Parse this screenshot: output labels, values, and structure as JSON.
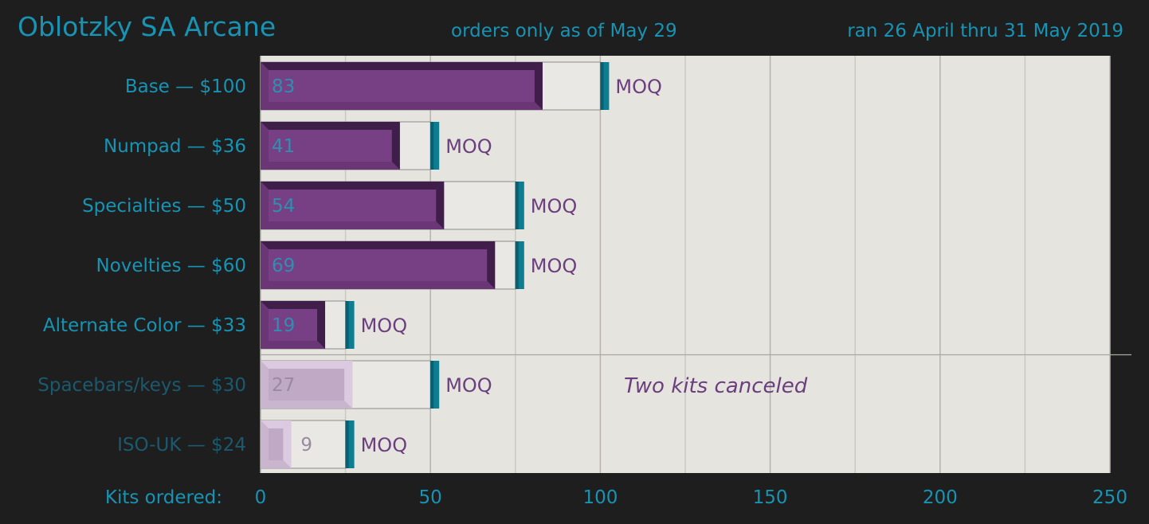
{
  "header": {
    "title": "Oblotzky SA Arcane",
    "subtitle": "orders only as of May 29",
    "date_range": "ran 26 April thru 31 May 2019"
  },
  "colors": {
    "background": "#1e1e1e",
    "plot_bg": "#e6e4df",
    "accent_text": "#1793b4",
    "dim_text": "#1b5a6e",
    "bar_active": "#773f84",
    "bar_active_dark": "#3f1e4a",
    "bar_canceled": "#bfa9c4",
    "bar_canceled_light": "#dccbe0",
    "moq_marker": "#0d7d92",
    "moq_text": "#6b3f7d",
    "annotation": "#6b3f7d"
  },
  "chart_data": {
    "type": "bar",
    "orientation": "horizontal",
    "categories": [
      "Base — $100",
      "Numpad — $36",
      "Specialties — $50",
      "Novelties — $60",
      "Alternate Color — $33",
      "Spacebars/keys — $30",
      "ISO-UK — $24"
    ],
    "values": [
      83,
      41,
      54,
      69,
      19,
      27,
      9
    ],
    "value_labels": [
      "83",
      "41",
      "54",
      "69",
      "19",
      "27",
      "9"
    ],
    "moq": [
      100,
      50,
      75,
      75,
      25,
      50,
      25
    ],
    "moq_label": "MOQ",
    "canceled": [
      false,
      false,
      false,
      false,
      false,
      true,
      true
    ],
    "xlabel": "Kits ordered:",
    "xlim": [
      0,
      250
    ],
    "xticks": [
      0,
      50,
      100,
      150,
      200,
      250
    ],
    "annotation": "Two kits canceled",
    "grid": true
  }
}
